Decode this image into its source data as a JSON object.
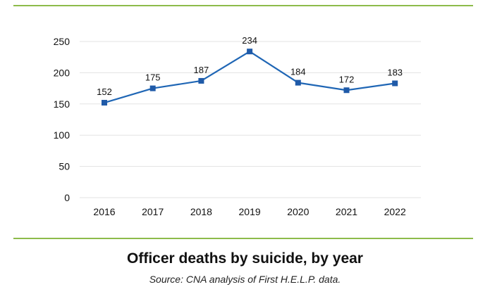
{
  "colors": {
    "rule": "#8dbb4a",
    "line": "#1f66b5",
    "marker": "#1f5aa8",
    "grid": "#e3e3e3",
    "text": "#111111"
  },
  "chart_data": {
    "type": "line",
    "title": "Officer deaths by suicide, by year",
    "subtitle": "Source: CNA analysis of First H.E.L.P. data.",
    "xlabel": "",
    "ylabel": "",
    "categories": [
      "2016",
      "2017",
      "2018",
      "2019",
      "2020",
      "2021",
      "2022"
    ],
    "series": [
      {
        "name": "Officer deaths by suicide",
        "values": [
          152,
          175,
          187,
          234,
          184,
          172,
          183
        ]
      }
    ],
    "data_labels": [
      "152",
      "175",
      "187",
      "234",
      "184",
      "172",
      "183"
    ],
    "ylim": [
      0,
      250
    ],
    "yticks": [
      0,
      50,
      100,
      150,
      200,
      250
    ],
    "ytick_labels": [
      "0",
      "50",
      "100",
      "150",
      "200",
      "250"
    ],
    "grid": true,
    "legend": "none"
  }
}
